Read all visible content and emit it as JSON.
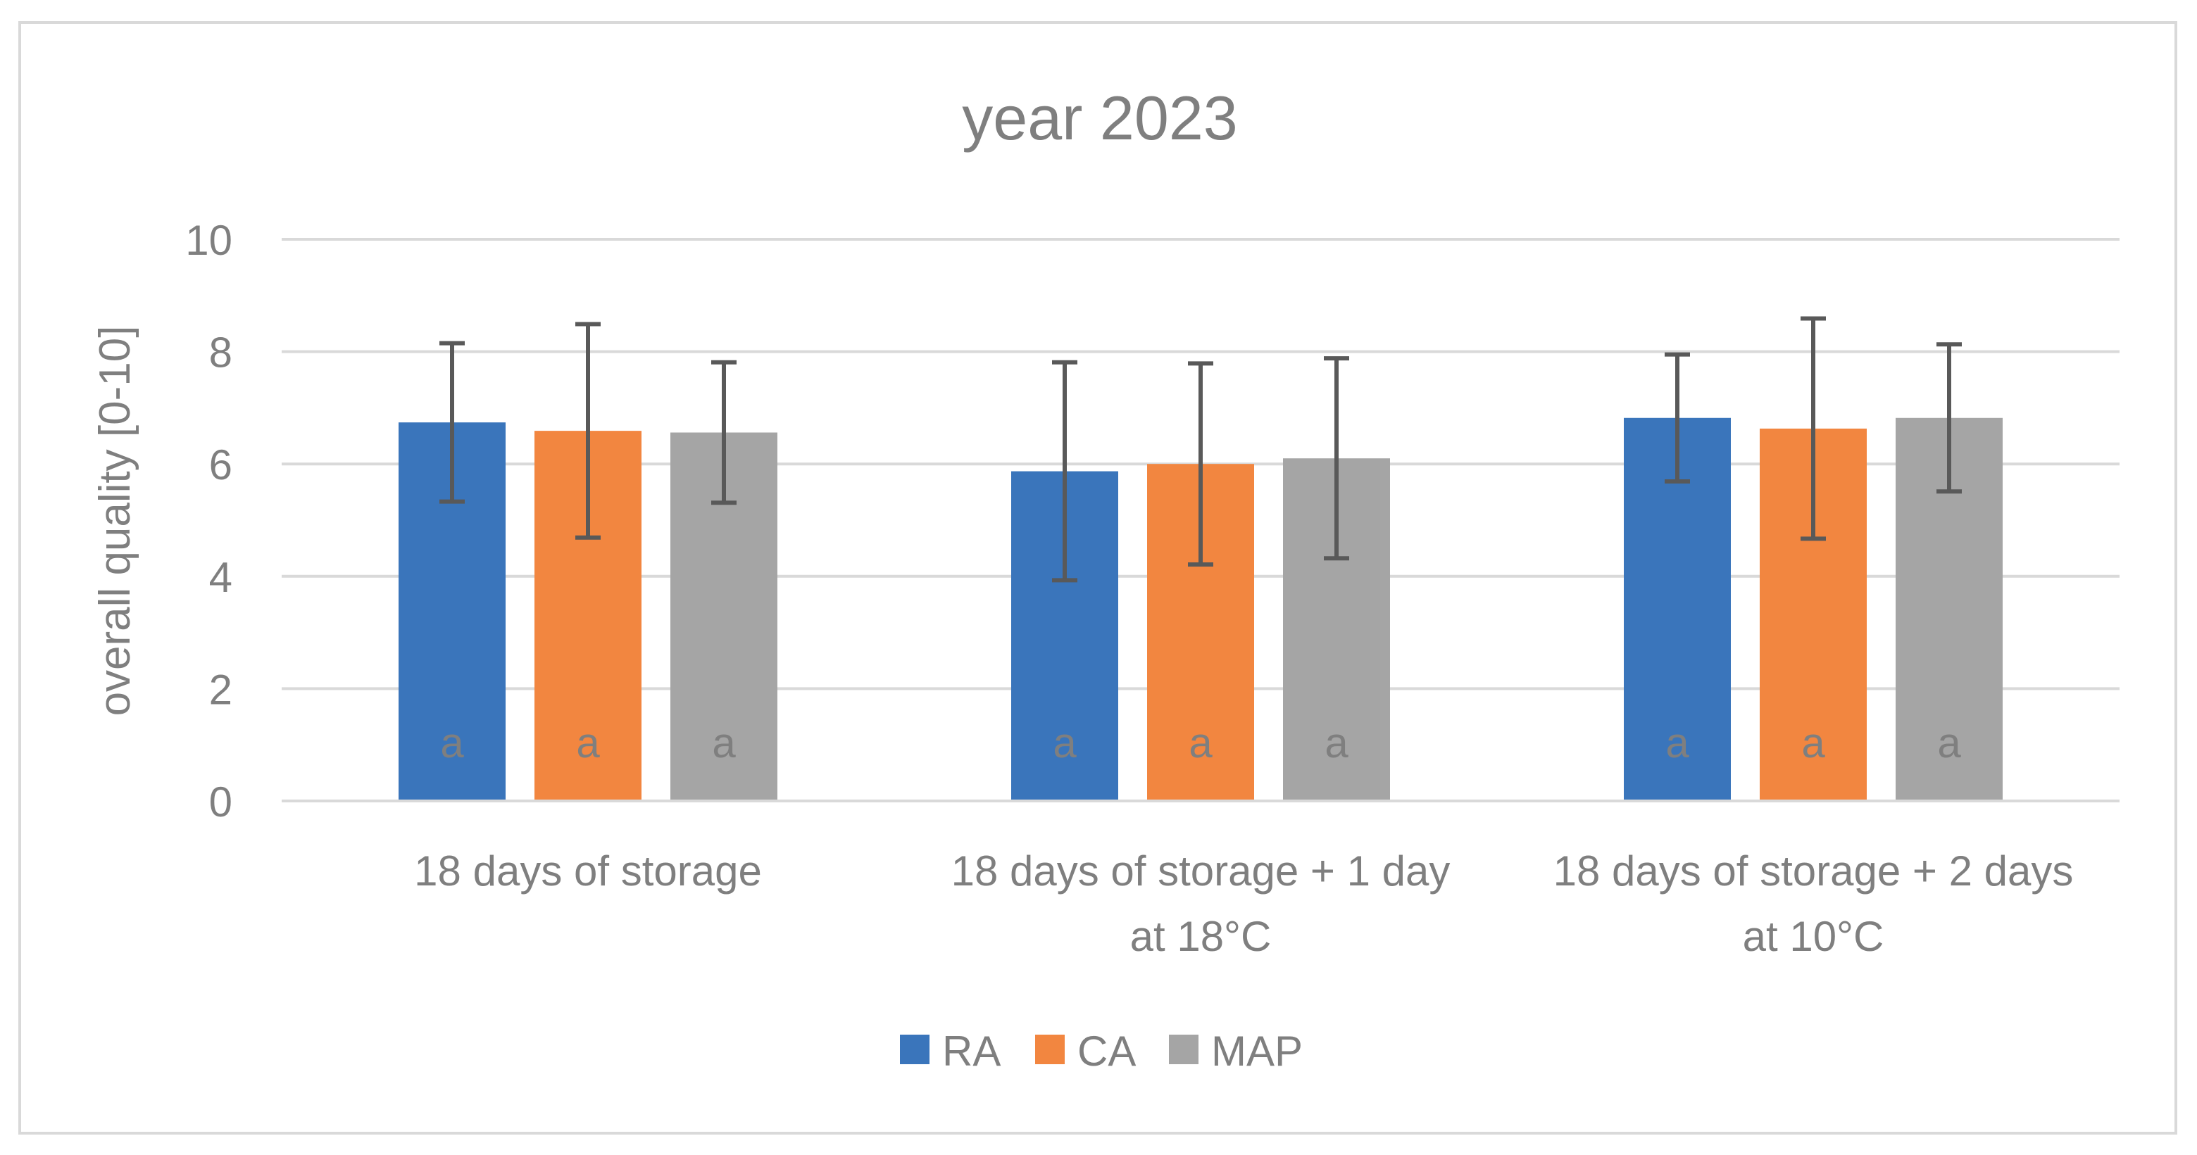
{
  "chart_data": {
    "type": "bar",
    "title": "year 2023",
    "xlabel": "",
    "ylabel": "overall quality [0-10]",
    "ylim": [
      0,
      10
    ],
    "yticks": [
      0,
      2,
      4,
      6,
      8,
      10
    ],
    "grid": true,
    "legend_position": "bottom",
    "categories": [
      [
        "18 days of storage"
      ],
      [
        "18 days of storage + 1 day",
        "at 18°C"
      ],
      [
        "18 days of storage + 2 days",
        "at 10°C"
      ]
    ],
    "series": [
      {
        "name": "RA",
        "color": "#3a75bb",
        "values": [
          6.74,
          5.87,
          6.82
        ],
        "errors": [
          1.41,
          1.94,
          1.13
        ],
        "labels": [
          "a",
          "a",
          "a"
        ]
      },
      {
        "name": "CA",
        "color": "#f28640",
        "values": [
          6.59,
          6.0,
          6.63
        ],
        "errors": [
          1.9,
          1.79,
          1.96
        ],
        "labels": [
          "a",
          "a",
          "a"
        ]
      },
      {
        "name": "MAP",
        "color": "#a5a5a5",
        "values": [
          6.56,
          6.1,
          6.82
        ],
        "errors": [
          1.25,
          1.78,
          1.31
        ],
        "labels": [
          "a",
          "a",
          "a"
        ]
      }
    ]
  }
}
